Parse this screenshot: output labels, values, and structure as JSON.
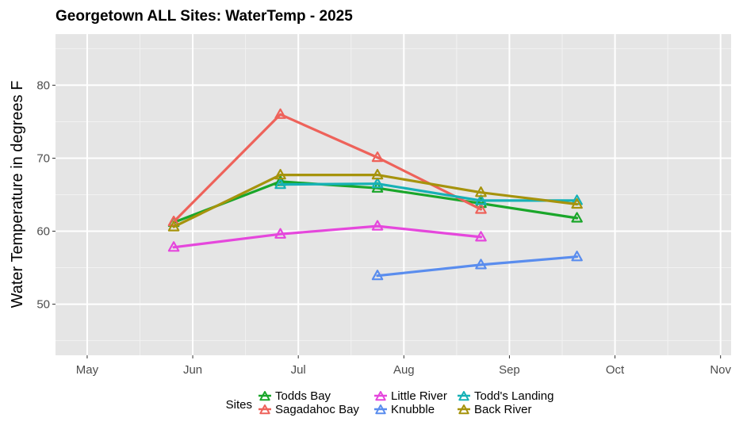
{
  "chart_data": {
    "type": "line",
    "title": "Georgetown ALL Sites: WaterTemp - 2025",
    "xlabel": "",
    "ylabel": "Water Temperature in degrees F",
    "x_ticks": [
      "May",
      "Jun",
      "Jul",
      "Aug",
      "Sep",
      "Oct",
      "Nov"
    ],
    "xlim": [
      -0.3,
      6.1
    ],
    "y_ticks": [
      50,
      60,
      70,
      80
    ],
    "ylim": [
      43,
      87
    ],
    "grid": true,
    "legend_title": "Sites",
    "legend_position": "bottom",
    "marker": "triangle-open",
    "series": [
      {
        "name": "Todds Bay",
        "color": "#1aa62a",
        "x": [
          0.82,
          1.83,
          2.75,
          3.73,
          4.64
        ],
        "y": [
          61.2,
          66.8,
          65.9,
          63.8,
          61.8
        ]
      },
      {
        "name": "Sagadahoc Bay",
        "color": "#ee625a",
        "x": [
          0.82,
          1.83,
          2.75,
          3.73
        ],
        "y": [
          61.3,
          76.0,
          70.1,
          63.0
        ]
      },
      {
        "name": "Little River",
        "color": "#e547dc",
        "x": [
          0.82,
          1.83,
          2.75,
          3.73
        ],
        "y": [
          57.8,
          59.6,
          60.7,
          59.2
        ]
      },
      {
        "name": "Knubble",
        "color": "#5a8dee",
        "x": [
          2.75,
          3.73,
          4.64
        ],
        "y": [
          53.9,
          55.4,
          56.5
        ]
      },
      {
        "name": "Todd's Landing",
        "color": "#16b1b6",
        "x": [
          1.83,
          2.75,
          3.73,
          4.64
        ],
        "y": [
          66.4,
          66.5,
          64.2,
          64.2
        ]
      },
      {
        "name": "Back River",
        "color": "#a6930c",
        "x": [
          0.82,
          1.83,
          2.75,
          3.73,
          4.64
        ],
        "y": [
          60.6,
          67.7,
          67.7,
          65.3,
          63.7
        ]
      }
    ]
  }
}
